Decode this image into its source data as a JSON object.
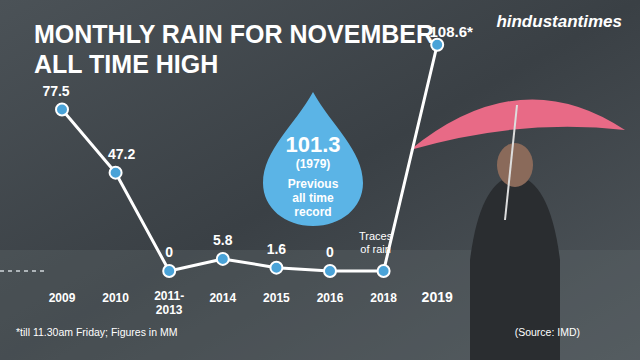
{
  "chart_data": {
    "type": "line",
    "title": "MONTHLY RAIN FOR NOVEMBER",
    "subtitle": "ALL TIME HIGH",
    "brand": "hindustantimes",
    "categories": [
      "2009",
      "2010",
      "2011-2013",
      "2014",
      "2015",
      "2016",
      "2018",
      "2019"
    ],
    "values": [
      77.5,
      47.2,
      0,
      5.8,
      1.6,
      0,
      0,
      108.6
    ],
    "value_labels": [
      "77.5",
      "47.2",
      "0",
      "5.8",
      "1.6",
      "0",
      null,
      "108.6*"
    ],
    "data_labels": true,
    "color": "#ffffff",
    "marker": "circle",
    "ylim": [
      0,
      120
    ],
    "tick_labels": "x",
    "grid": false,
    "annotations": [
      {
        "label": "101.3",
        "note": "(1979)",
        "text": "Previous all time record"
      },
      {
        "text": "Traces of rain"
      }
    ],
    "footnote": "*till 11.30am Friday; Figures in MM",
    "source": "(Source: IMD)"
  }
}
